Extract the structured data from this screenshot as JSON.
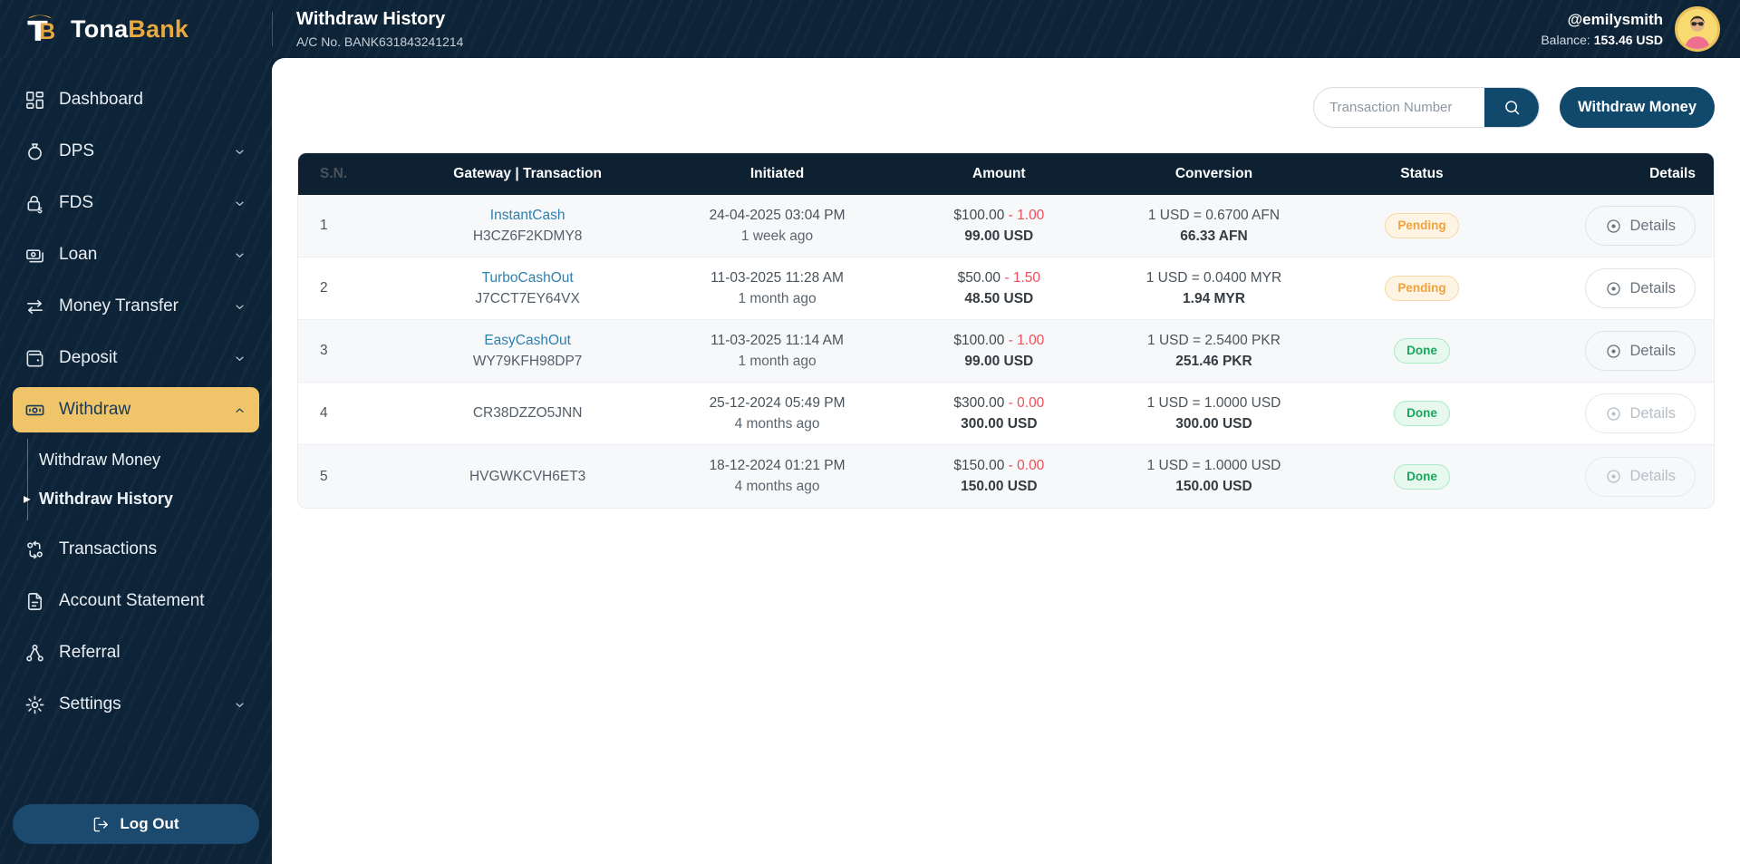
{
  "brand": {
    "name_primary": "Tona",
    "name_secondary": "Bank",
    "logo_icon": "tonabank-logo-icon"
  },
  "header": {
    "title": "Withdraw History",
    "account_number": "A/C No. BANK631843241214",
    "username": "@emilysmith",
    "balance_label": "Balance:",
    "balance_value": "153.46 USD"
  },
  "toolbar": {
    "search_placeholder": "Transaction Number",
    "search_icon": "search-icon",
    "withdraw_button_label": "Withdraw Money"
  },
  "sidebar": {
    "items": [
      {
        "label": "Dashboard",
        "icon": "dashboard-icon",
        "expandable": false,
        "active": false
      },
      {
        "label": "DPS",
        "icon": "money-bag-icon",
        "expandable": true,
        "active": false
      },
      {
        "label": "FDS",
        "icon": "lock-dollar-icon",
        "expandable": true,
        "active": false
      },
      {
        "label": "Loan",
        "icon": "banknotes-icon",
        "expandable": true,
        "active": false
      },
      {
        "label": "Money Transfer",
        "icon": "transfer-arrows-icon",
        "expandable": true,
        "active": false
      },
      {
        "label": "Deposit",
        "icon": "wallet-icon",
        "expandable": true,
        "active": false
      },
      {
        "label": "Withdraw",
        "icon": "banknote-icon",
        "expandable": true,
        "active": true,
        "expanded": true,
        "submenu": [
          {
            "label": "Withdraw Money",
            "active": false
          },
          {
            "label": "Withdraw History",
            "active": true
          }
        ]
      },
      {
        "label": "Transactions",
        "icon": "transactions-icon",
        "expandable": false,
        "active": false
      },
      {
        "label": "Account Statement",
        "icon": "document-icon",
        "expandable": false,
        "active": false
      },
      {
        "label": "Referral",
        "icon": "referral-icon",
        "expandable": false,
        "active": false
      },
      {
        "label": "Settings",
        "icon": "gear-icon",
        "expandable": true,
        "active": false
      }
    ],
    "logout_label": "Log Out"
  },
  "table": {
    "columns": [
      "S.N.",
      "Gateway | Transaction",
      "Initiated",
      "Amount",
      "Conversion",
      "Status",
      "Details"
    ],
    "details_label": "Details",
    "rows": [
      {
        "sn": "1",
        "gateway": "InstantCash",
        "transaction": "H3CZ6F2KDMY8",
        "date": "24-04-2025 03:04 PM",
        "time_ago": "1 week ago",
        "amount": "$100.00",
        "fee": "- 1.00",
        "net_amount": "99.00 USD",
        "rate": "1 USD = 0.6700 AFN",
        "converted": "66.33 AFN",
        "status": "Pending",
        "details_enabled": true
      },
      {
        "sn": "2",
        "gateway": "TurboCashOut",
        "transaction": "J7CCT7EY64VX",
        "date": "11-03-2025 11:28 AM",
        "time_ago": "1 month ago",
        "amount": "$50.00",
        "fee": "- 1.50",
        "net_amount": "48.50 USD",
        "rate": "1 USD = 0.0400 MYR",
        "converted": "1.94 MYR",
        "status": "Pending",
        "details_enabled": true
      },
      {
        "sn": "3",
        "gateway": "EasyCashOut",
        "transaction": "WY79KFH98DP7",
        "date": "11-03-2025 11:14 AM",
        "time_ago": "1 month ago",
        "amount": "$100.00",
        "fee": "- 1.00",
        "net_amount": "99.00 USD",
        "rate": "1 USD = 2.5400 PKR",
        "converted": "251.46 PKR",
        "status": "Done",
        "details_enabled": true
      },
      {
        "sn": "4",
        "gateway": "",
        "transaction": "CR38DZZO5JNN",
        "date": "25-12-2024 05:49 PM",
        "time_ago": "4 months ago",
        "amount": "$300.00",
        "fee": "- 0.00",
        "net_amount": "300.00 USD",
        "rate": "1 USD = 1.0000 USD",
        "converted": "300.00 USD",
        "status": "Done",
        "details_enabled": false
      },
      {
        "sn": "5",
        "gateway": "",
        "transaction": "HVGWKCVH6ET3",
        "date": "18-12-2024 01:21 PM",
        "time_ago": "4 months ago",
        "amount": "$150.00",
        "fee": "- 0.00",
        "net_amount": "150.00 USD",
        "rate": "1 USD = 1.0000 USD",
        "converted": "150.00 USD",
        "status": "Done",
        "details_enabled": false
      }
    ]
  },
  "colors": {
    "navy": "#0d2438",
    "table_header_navy": "#0d2133",
    "button_navy": "#11496d",
    "accent_gold": "#f0c468",
    "logo_gold": "#e9a93f",
    "pending_orange": "#f0a23c",
    "done_green": "#18a75c",
    "fee_red": "#e8505b",
    "link_blue": "#2e7fae"
  }
}
